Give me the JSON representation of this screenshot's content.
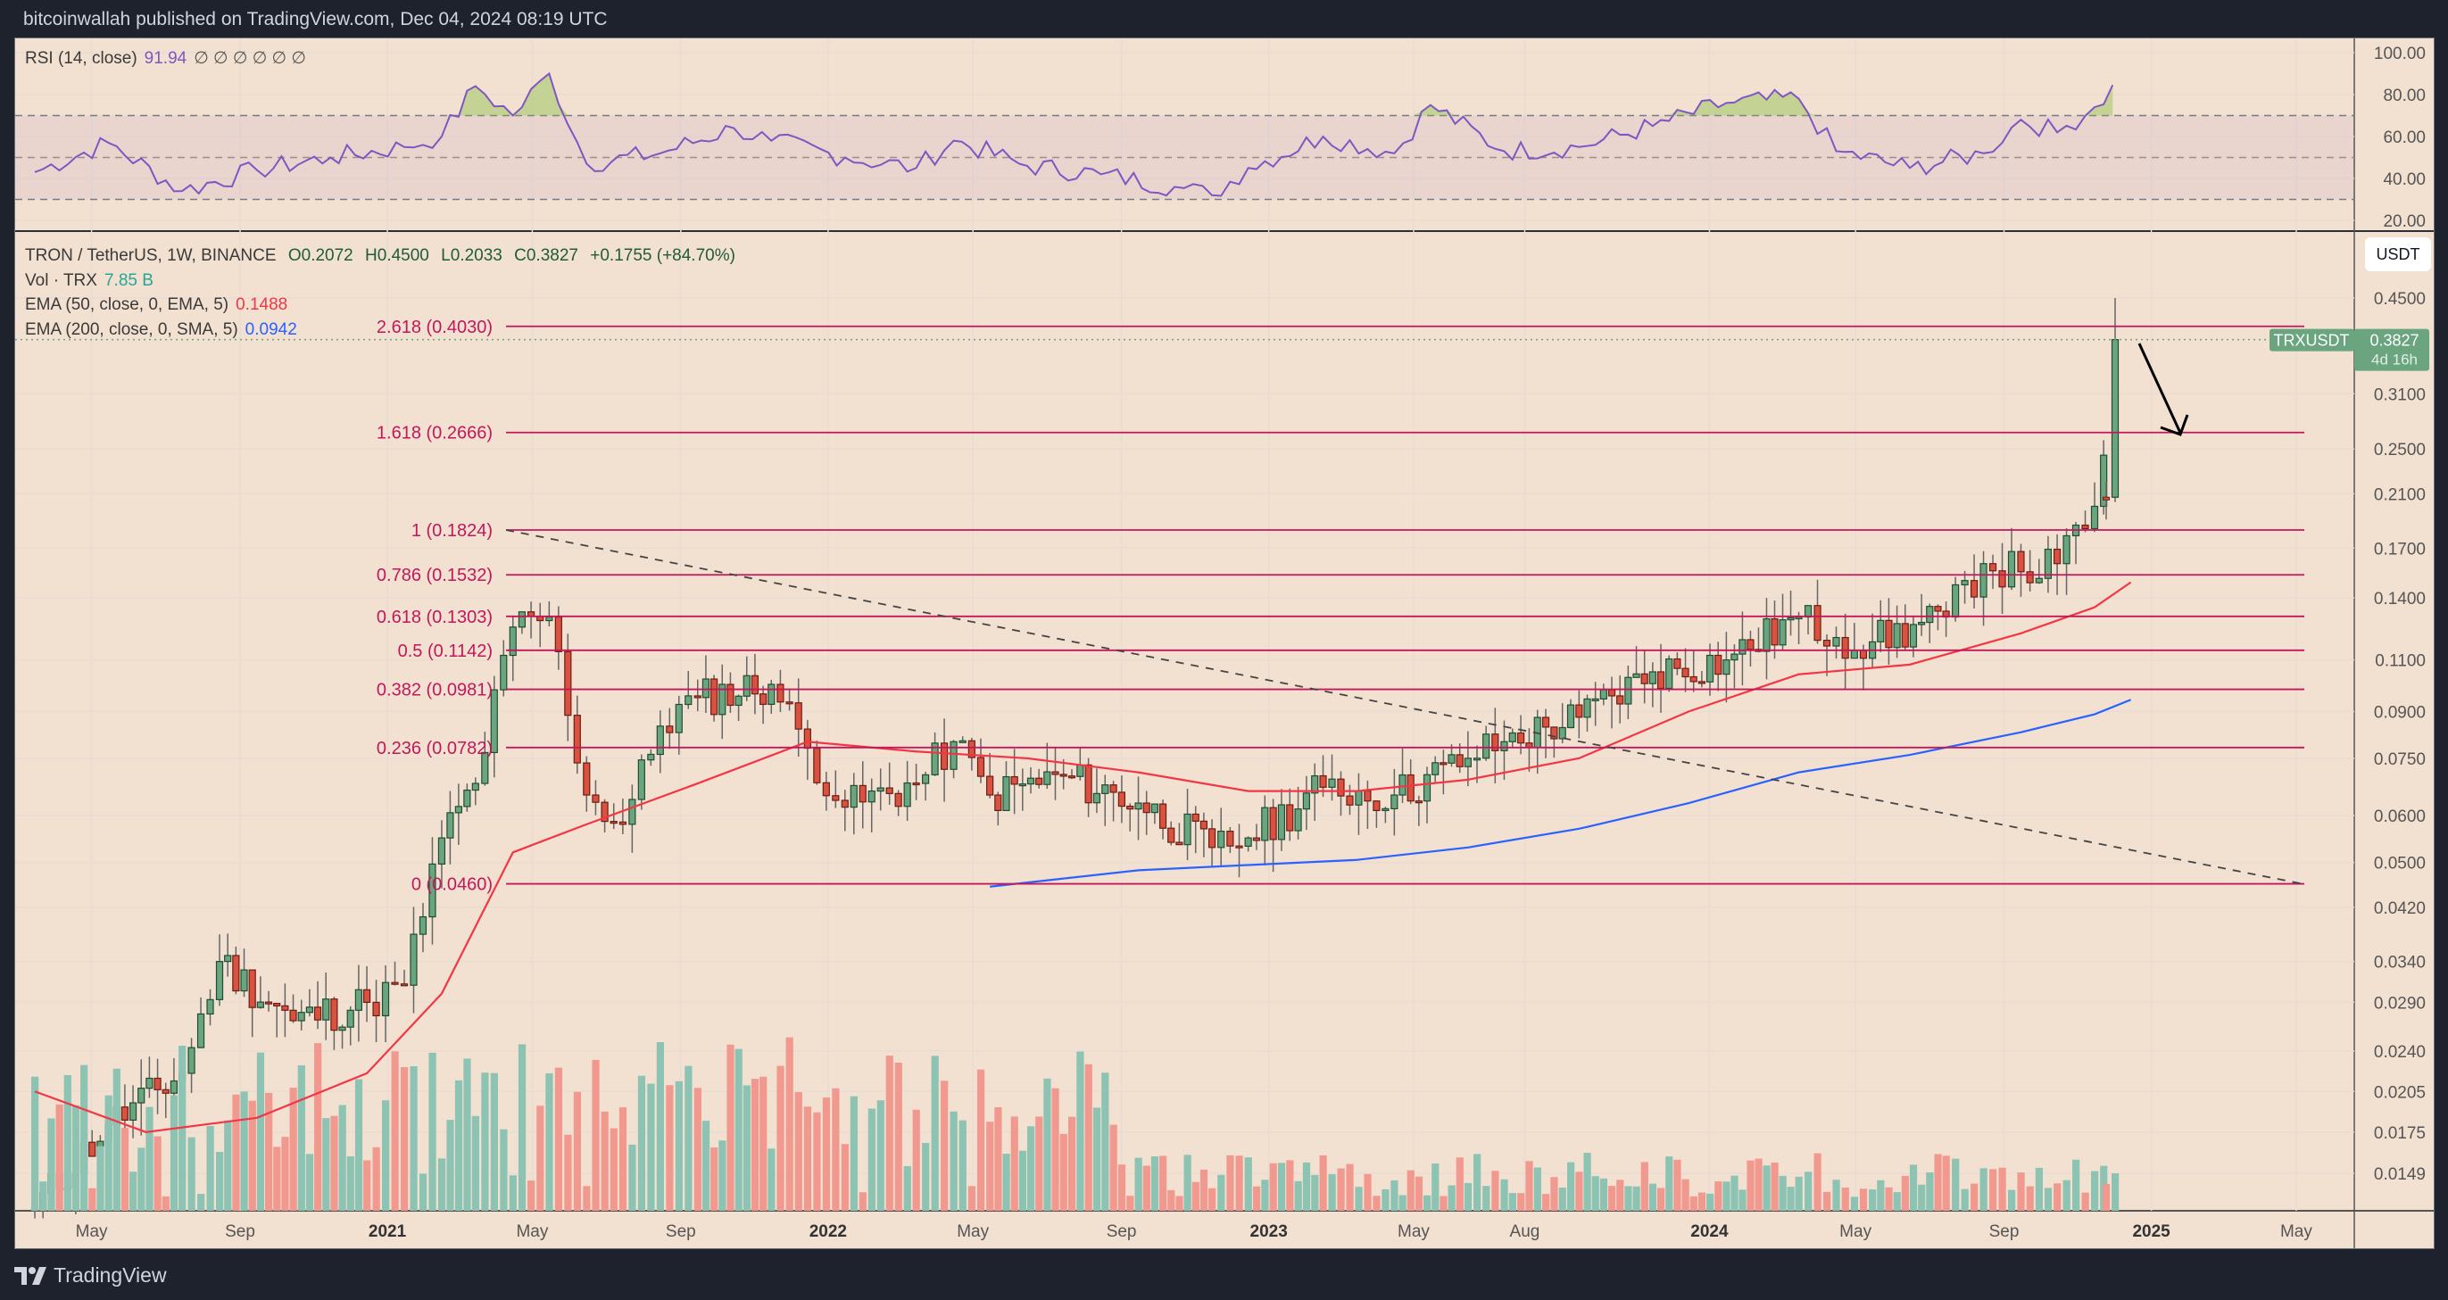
{
  "header": {
    "published": "bitcoinwallah published on TradingView.com, Dec 04, 2024 08:19 UTC"
  },
  "footer": {
    "brand": "TradingView"
  },
  "rsi_legend": {
    "label": "RSI (14, close)",
    "value": "91.94",
    "nulls": "∅ ∅ ∅ ∅ ∅ ∅"
  },
  "main_legend": {
    "symbol": "TRON / TetherUS, 1W, BINANCE",
    "open": "O0.2072",
    "high": "H0.4500",
    "low": "L0.2033",
    "close": "C0.3827",
    "change": "+0.1755 (+84.70%)",
    "vol_label": "Vol · TRX",
    "vol_value": "7.85 B",
    "ema50_label": "EMA (50, close, 0, EMA, 5)",
    "ema50_value": "0.1488",
    "ema200_label": "EMA (200, close, 0, SMA, 5)",
    "ema200_value": "0.0942"
  },
  "currency_button": "USDT",
  "price_tag": {
    "symbol": "TRXUSDT",
    "price": "0.3827",
    "countdown": "4d 16h"
  },
  "colors": {
    "background": "#f2e0d0",
    "up": "#6aa57f",
    "down": "#d9513f",
    "vol_up": "#8cc3b3",
    "vol_down": "#f1998f",
    "ema50": "#f23645",
    "ema200": "#2962ff",
    "fib": "#c2185b",
    "rsi": "#7e57c2",
    "frame": "#1e222d"
  },
  "chart_data": [
    {
      "type": "line",
      "title": "RSI (14, close)",
      "yticks": [
        100,
        80,
        60,
        40,
        20
      ],
      "ylim": [
        15,
        105
      ],
      "bands": {
        "upper": 70,
        "middle": 50,
        "lower": 30
      },
      "last_value": 91.94,
      "x": [
        "2020-03",
        "2020-05",
        "2020-07",
        "2020-09",
        "2020-11",
        "2021-01",
        "2021-02",
        "2021-03",
        "2021-04",
        "2021-05",
        "2021-06",
        "2021-08",
        "2021-10",
        "2021-11",
        "2022-01",
        "2022-03",
        "2022-04",
        "2022-06",
        "2022-08",
        "2022-10",
        "2022-11",
        "2022-12",
        "2023-02",
        "2023-04",
        "2023-05",
        "2023-07",
        "2023-09",
        "2023-11",
        "2024-01",
        "2024-03",
        "2024-04",
        "2024-06",
        "2024-08",
        "2024-09",
        "2024-10",
        "2024-11",
        "2024-12"
      ],
      "values": [
        43,
        57,
        34,
        44,
        50,
        55,
        60,
        84,
        70,
        90,
        47,
        52,
        64,
        58,
        50,
        45,
        58,
        46,
        42,
        36,
        32,
        45,
        60,
        52,
        75,
        53,
        55,
        65,
        76,
        78,
        53,
        45,
        52,
        68,
        62,
        74,
        92
      ]
    },
    {
      "type": "candlestick",
      "title": "TRON / TetherUS, 1W, BINANCE",
      "yscale": "log",
      "yticks": [
        0.45,
        0.31,
        0.25,
        0.21,
        0.17,
        0.14,
        0.11,
        0.09,
        0.075,
        0.06,
        0.05,
        0.042,
        0.034,
        0.029,
        0.024,
        0.0205,
        0.0175,
        0.0149
      ],
      "xticks": [
        "May",
        "Sep",
        "2021",
        "May",
        "Sep",
        "2022",
        "May",
        "Sep",
        "2023",
        "May",
        "Aug",
        "2024",
        "May",
        "Sep",
        "2025",
        "May"
      ],
      "last_candle": {
        "open": 0.2072,
        "high": 0.45,
        "low": 0.2033,
        "close": 0.3827,
        "change": 0.1755,
        "change_pct": 84.7
      },
      "ema50_last": 0.1488,
      "ema200_last": 0.0942,
      "fib_levels": [
        {
          "ratio": "2.618",
          "price": 0.403
        },
        {
          "ratio": "1.618",
          "price": 0.2666
        },
        {
          "ratio": "1",
          "price": 0.1824
        },
        {
          "ratio": "0.786",
          "price": 0.1532
        },
        {
          "ratio": "0.618",
          "price": 0.1303
        },
        {
          "ratio": "0.5",
          "price": 0.1142
        },
        {
          "ratio": "0.382",
          "price": 0.0981
        },
        {
          "ratio": "0.236",
          "price": 0.0782
        },
        {
          "ratio": "0",
          "price": 0.046
        }
      ],
      "closes_approx": {
        "x": [
          "2020-03",
          "2020-05",
          "2020-07",
          "2020-08",
          "2020-10",
          "2020-12",
          "2021-01",
          "2021-02",
          "2021-03",
          "2021-04",
          "2021-05",
          "2021-06",
          "2021-07",
          "2021-08",
          "2021-09",
          "2021-11",
          "2021-12",
          "2022-01",
          "2022-03",
          "2022-04",
          "2022-05",
          "2022-07",
          "2022-09",
          "2022-11",
          "2022-12",
          "2023-02",
          "2023-04",
          "2023-06",
          "2023-07",
          "2023-09",
          "2023-11",
          "2024-01",
          "2024-03",
          "2024-04",
          "2024-05",
          "2024-07",
          "2024-08",
          "2024-09",
          "2024-10",
          "2024-11",
          "2024-12"
        ],
        "values": [
          0.013,
          0.018,
          0.022,
          0.034,
          0.027,
          0.029,
          0.031,
          0.055,
          0.068,
          0.125,
          0.13,
          0.065,
          0.058,
          0.085,
          0.095,
          0.1,
          0.078,
          0.062,
          0.068,
          0.08,
          0.065,
          0.07,
          0.063,
          0.053,
          0.055,
          0.067,
          0.065,
          0.075,
          0.08,
          0.088,
          0.105,
          0.11,
          0.13,
          0.12,
          0.118,
          0.13,
          0.16,
          0.155,
          0.16,
          0.2,
          0.3827
        ]
      },
      "annotations": [
        "dashed downtrend line from 2021 high to 2025",
        "arrow pointing down from current price toward 1.618 fib level"
      ]
    },
    {
      "type": "bar",
      "title": "Vol · TRX",
      "last_value": "7.85 B"
    }
  ]
}
